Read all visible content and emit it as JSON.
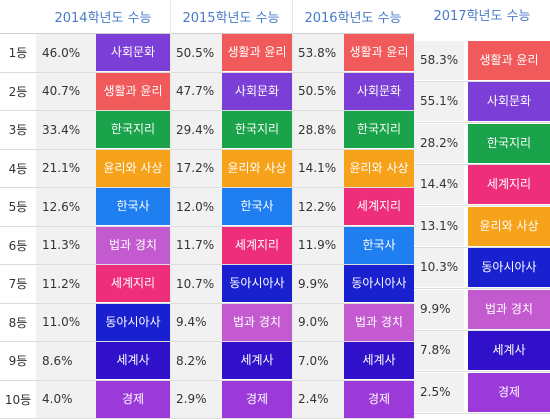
{
  "colors": {
    "사회문화": "#7b3ed6",
    "생활과 윤리": "#f05a5a",
    "한국지리": "#1aa34a",
    "윤리와 사상": "#f7a21b",
    "한국사": "#1f7ef0",
    "법과 정치": "#c45ad0",
    "세계지리": "#ee2e7a",
    "동아시아사": "#1820d0",
    "세계사": "#3010c8",
    "경제": "#9b3ad8",
    "header_text": "#4a7bc8"
  },
  "headers": [
    "2014학년도 수능",
    "2015학년도 수능",
    "2016학년도 수능",
    "2017학년도 수능"
  ],
  "ranks": [
    "1등",
    "2등",
    "3등",
    "4등",
    "5등",
    "6등",
    "7등",
    "8등",
    "9등",
    "10등"
  ],
  "years": [
    {
      "rows": [
        {
          "pct": "46.0%",
          "subject": "사회문화"
        },
        {
          "pct": "40.7%",
          "subject": "생활과 윤리"
        },
        {
          "pct": "33.4%",
          "subject": "한국지리"
        },
        {
          "pct": "21.1%",
          "subject": "윤리와 사상"
        },
        {
          "pct": "12.6%",
          "subject": "한국사"
        },
        {
          "pct": "11.3%",
          "subject": "법과 경치"
        },
        {
          "pct": "11.2%",
          "subject": "세계지리"
        },
        {
          "pct": "11.0%",
          "subject": "동아시아사"
        },
        {
          "pct": "8.6%",
          "subject": "세계사"
        },
        {
          "pct": "4.0%",
          "subject": "경제"
        }
      ]
    },
    {
      "rows": [
        {
          "pct": "50.5%",
          "subject": "생활과 윤리"
        },
        {
          "pct": "47.7%",
          "subject": "사회문화"
        },
        {
          "pct": "29.4%",
          "subject": "한국지리"
        },
        {
          "pct": "17.2%",
          "subject": "윤리와 사상"
        },
        {
          "pct": "12.0%",
          "subject": "한국사"
        },
        {
          "pct": "11.7%",
          "subject": "세계지리"
        },
        {
          "pct": "10.7%",
          "subject": "동아시아사"
        },
        {
          "pct": "9.4%",
          "subject": "법과 경치"
        },
        {
          "pct": "8.2%",
          "subject": "세계사"
        },
        {
          "pct": "2.9%",
          "subject": "경제"
        }
      ]
    },
    {
      "rows": [
        {
          "pct": "53.8%",
          "subject": "생활과 윤리"
        },
        {
          "pct": "50.5%",
          "subject": "사회문화"
        },
        {
          "pct": "28.8%",
          "subject": "한국지리"
        },
        {
          "pct": "14.1%",
          "subject": "윤리와 사상"
        },
        {
          "pct": "12.2%",
          "subject": "세계지리"
        },
        {
          "pct": "11.9%",
          "subject": "한국사"
        },
        {
          "pct": "9.9%",
          "subject": "동아시아사"
        },
        {
          "pct": "9.0%",
          "subject": "법과 경치"
        },
        {
          "pct": "7.0%",
          "subject": "세계사"
        },
        {
          "pct": "2.4%",
          "subject": "경제"
        }
      ]
    },
    {
      "rows": [
        {
          "pct": "58.3%",
          "subject": "생활과 윤리"
        },
        {
          "pct": "55.1%",
          "subject": "사회문화"
        },
        {
          "pct": "28.2%",
          "subject": "한국지리"
        },
        {
          "pct": "14.4%",
          "subject": "세계지리"
        },
        {
          "pct": "13.1%",
          "subject": "윤리와 사상"
        },
        {
          "pct": "10.3%",
          "subject": "동아시아사"
        },
        {
          "pct": "9.9%",
          "subject": "법과 경치"
        },
        {
          "pct": "7.8%",
          "subject": "세계사"
        },
        {
          "pct": "2.5%",
          "subject": "경제"
        }
      ]
    }
  ]
}
